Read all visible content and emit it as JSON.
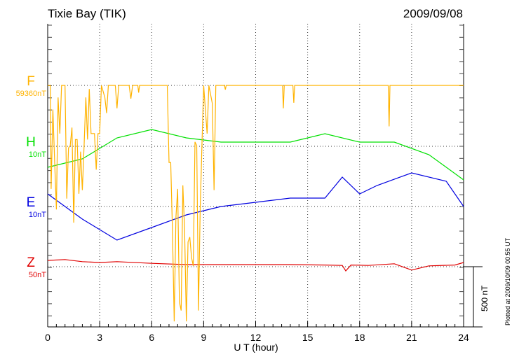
{
  "header": {
    "title": "Tixie Bay (TIK)",
    "date": "2009/09/08"
  },
  "footer": {
    "plotted": "Plotted at 2009/10/09 00:55 UT",
    "scale_bar": "500 nT"
  },
  "chart_data": {
    "type": "line",
    "xlabel": "U T (hour)",
    "xlim": [
      0,
      24
    ],
    "xticks": [
      "0",
      "3",
      "6",
      "9",
      "12",
      "15",
      "18",
      "21",
      "24"
    ],
    "grid": "dotted verticals every 3 h and at each baseline",
    "scale_bar_nT": 500,
    "series": [
      {
        "name": "F",
        "label": "F",
        "sublabel": "59360nT",
        "color": "#ffb300",
        "points": [
          [
            0,
            0
          ],
          [
            0.15,
            0
          ],
          [
            0.2,
            -860
          ],
          [
            0.3,
            -200
          ],
          [
            0.4,
            -630
          ],
          [
            0.5,
            -1030
          ],
          [
            0.6,
            -100
          ],
          [
            0.7,
            -400
          ],
          [
            0.8,
            0
          ],
          [
            1.0,
            0
          ],
          [
            1.1,
            -940
          ],
          [
            1.2,
            -520
          ],
          [
            1.3,
            -500
          ],
          [
            1.4,
            -350
          ],
          [
            1.5,
            -1140
          ],
          [
            1.6,
            -450
          ],
          [
            1.7,
            -450
          ],
          [
            1.8,
            -900
          ],
          [
            1.9,
            -550
          ],
          [
            2.0,
            -870
          ],
          [
            2.1,
            -500
          ],
          [
            2.2,
            -100
          ],
          [
            2.3,
            -450
          ],
          [
            2.4,
            -30
          ],
          [
            2.5,
            -400
          ],
          [
            2.7,
            -400
          ],
          [
            2.8,
            -700
          ],
          [
            2.9,
            -400
          ],
          [
            3.0,
            -400
          ],
          [
            3.1,
            0
          ],
          [
            3.3,
            -100
          ],
          [
            3.4,
            -230
          ],
          [
            3.5,
            0
          ],
          [
            3.9,
            0
          ],
          [
            4.0,
            -190
          ],
          [
            4.1,
            0
          ],
          [
            4.7,
            0
          ],
          [
            4.8,
            -110
          ],
          [
            4.9,
            0
          ],
          [
            5.2,
            0
          ],
          [
            5.25,
            -60
          ],
          [
            5.3,
            0
          ],
          [
            6.9,
            0
          ],
          [
            7.0,
            -640
          ],
          [
            7.1,
            -640
          ],
          [
            7.2,
            -1210
          ],
          [
            7.3,
            -1960
          ],
          [
            7.4,
            -1100
          ],
          [
            7.5,
            -860
          ],
          [
            7.6,
            -1800
          ],
          [
            7.7,
            -1870
          ],
          [
            7.8,
            -830
          ],
          [
            7.9,
            -1200
          ],
          [
            8.0,
            -1960
          ],
          [
            8.1,
            -1300
          ],
          [
            8.2,
            -1260
          ],
          [
            8.3,
            -1430
          ],
          [
            8.4,
            -1500
          ],
          [
            8.5,
            -470
          ],
          [
            8.6,
            -500
          ],
          [
            8.7,
            -1870
          ],
          [
            8.8,
            -1040
          ],
          [
            8.9,
            -500
          ],
          [
            9.0,
            0
          ],
          [
            9.1,
            -200
          ],
          [
            9.2,
            -400
          ],
          [
            9.3,
            0
          ],
          [
            9.5,
            -150
          ],
          [
            9.6,
            -870
          ],
          [
            9.7,
            0
          ],
          [
            10.2,
            0
          ],
          [
            10.25,
            -35
          ],
          [
            10.3,
            0
          ],
          [
            13.55,
            0
          ],
          [
            13.6,
            -190
          ],
          [
            13.65,
            0
          ],
          [
            14.15,
            0
          ],
          [
            14.2,
            -145
          ],
          [
            14.25,
            0
          ],
          [
            19.65,
            0
          ],
          [
            19.7,
            -340
          ],
          [
            19.75,
            0
          ],
          [
            24,
            0
          ]
        ]
      },
      {
        "name": "H",
        "label": "H",
        "sublabel": "10nT",
        "color": "#00e000",
        "points": [
          [
            0,
            -5
          ],
          [
            2,
            -3
          ],
          [
            4,
            2
          ],
          [
            6,
            4
          ],
          [
            8,
            2
          ],
          [
            10,
            1
          ],
          [
            12,
            1
          ],
          [
            14,
            1
          ],
          [
            16,
            3
          ],
          [
            18,
            1
          ],
          [
            20,
            1
          ],
          [
            22,
            -2
          ],
          [
            24,
            -8
          ]
        ]
      },
      {
        "name": "E",
        "label": "E",
        "sublabel": "10nT",
        "color": "#0000e0",
        "points": [
          [
            0,
            3
          ],
          [
            1,
            0
          ],
          [
            2,
            -3
          ],
          [
            4,
            -8
          ],
          [
            6,
            -5
          ],
          [
            8,
            -2
          ],
          [
            10,
            0
          ],
          [
            12,
            1
          ],
          [
            14,
            2
          ],
          [
            16,
            2
          ],
          [
            17,
            7
          ],
          [
            18,
            3
          ],
          [
            19,
            5
          ],
          [
            21,
            8
          ],
          [
            23,
            6
          ],
          [
            24,
            0
          ]
        ]
      },
      {
        "name": "Z",
        "label": "Z",
        "sublabel": "50nT",
        "color": "#e00000",
        "points": [
          [
            0,
            15
          ],
          [
            1,
            17
          ],
          [
            2,
            12
          ],
          [
            3,
            10
          ],
          [
            4,
            12
          ],
          [
            6,
            8
          ],
          [
            8,
            5
          ],
          [
            10,
            5
          ],
          [
            12,
            5
          ],
          [
            14,
            5
          ],
          [
            16,
            4
          ],
          [
            17,
            3
          ],
          [
            17.2,
            -10
          ],
          [
            17.5,
            4
          ],
          [
            18.5,
            3
          ],
          [
            20,
            7
          ],
          [
            21,
            -8
          ],
          [
            22,
            2
          ],
          [
            23.5,
            4
          ],
          [
            24,
            10
          ]
        ]
      }
    ]
  }
}
